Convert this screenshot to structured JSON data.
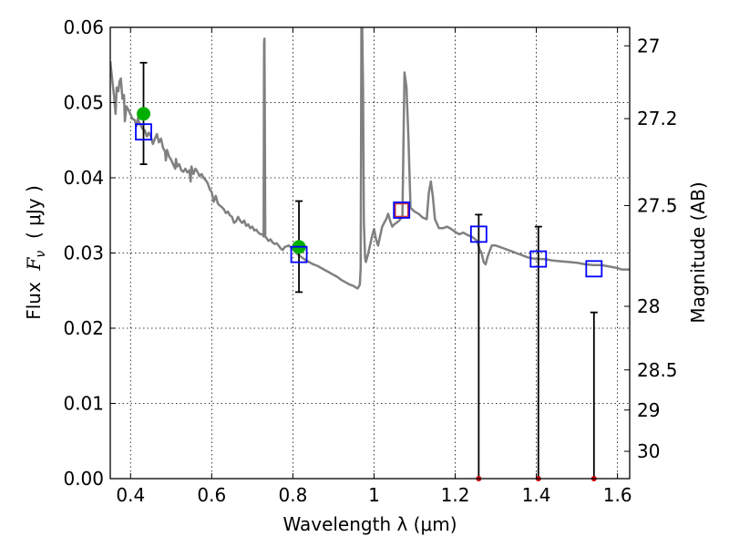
{
  "chart_data": {
    "type": "scatter",
    "xlabel": "Wavelength  λ (μm)",
    "ylabel": "Flux  F_ν  ( μJy )",
    "ylabel_parts": {
      "prefix": "Flux  ",
      "symbol": "F",
      "subscript": "ν",
      "suffix": "  ( μJy )"
    },
    "y2label": "Magnitude (AB)",
    "xlim": [
      0.35,
      1.63
    ],
    "ylim": [
      0.0,
      0.06
    ],
    "xticks": [
      0.4,
      0.6,
      0.8,
      1.0,
      1.2,
      1.4,
      1.6
    ],
    "xtick_labels": [
      "0.4",
      "0.6",
      "0.8",
      "1",
      "1.2",
      "1.4",
      "1.6"
    ],
    "yticks": [
      0.0,
      0.01,
      0.02,
      0.03,
      0.04,
      0.05,
      0.06
    ],
    "ytick_labels": [
      "0.00",
      "0.01",
      "0.02",
      "0.03",
      "0.04",
      "0.05",
      "0.06"
    ],
    "y2ticks": [
      27,
      27.2,
      27.5,
      28,
      28.5,
      29,
      30
    ],
    "y2tick_labels": [
      "27",
      "27.2",
      "27.5",
      "28",
      "28.5",
      "29",
      "30"
    ],
    "grid": true,
    "colors": {
      "sed": "#808080",
      "observed": "#00b000",
      "model": "#0000ff",
      "model_alt": "#cc3333",
      "upper_limit": "#cc0000",
      "errorbar": "#000000"
    },
    "series": [
      {
        "type": "line",
        "points": [
          [
            0.35,
            0.0555
          ],
          [
            0.355,
            0.053
          ],
          [
            0.36,
            0.0505
          ],
          [
            0.363,
            0.0485
          ],
          [
            0.366,
            0.052
          ],
          [
            0.37,
            0.0515
          ],
          [
            0.373,
            0.0528
          ],
          [
            0.376,
            0.0532
          ],
          [
            0.38,
            0.0505
          ],
          [
            0.384,
            0.051
          ],
          [
            0.386,
            0.0475
          ],
          [
            0.39,
            0.0495
          ],
          [
            0.395,
            0.049
          ],
          [
            0.4,
            0.0484
          ],
          [
            0.405,
            0.0478
          ],
          [
            0.41,
            0.0477
          ],
          [
            0.415,
            0.0469
          ],
          [
            0.418,
            0.0479
          ],
          [
            0.42,
            0.0475
          ],
          [
            0.425,
            0.047
          ],
          [
            0.43,
            0.0465
          ],
          [
            0.435,
            0.0463
          ],
          [
            0.44,
            0.0455
          ],
          [
            0.445,
            0.046
          ],
          [
            0.45,
            0.0455
          ],
          [
            0.455,
            0.0445
          ],
          [
            0.46,
            0.0452
          ],
          [
            0.465,
            0.0458
          ],
          [
            0.47,
            0.0447
          ],
          [
            0.475,
            0.0452
          ],
          [
            0.48,
            0.044
          ],
          [
            0.485,
            0.0435
          ],
          [
            0.487,
            0.0423
          ],
          [
            0.49,
            0.0437
          ],
          [
            0.495,
            0.0428
          ],
          [
            0.5,
            0.0424
          ],
          [
            0.505,
            0.0418
          ],
          [
            0.51,
            0.0412
          ],
          [
            0.512,
            0.0425
          ],
          [
            0.515,
            0.0415
          ],
          [
            0.52,
            0.0418
          ],
          [
            0.525,
            0.041
          ],
          [
            0.53,
            0.0408
          ],
          [
            0.535,
            0.0412
          ],
          [
            0.54,
            0.0407
          ],
          [
            0.545,
            0.041
          ],
          [
            0.548,
            0.0395
          ],
          [
            0.55,
            0.0415
          ],
          [
            0.555,
            0.0405
          ],
          [
            0.56,
            0.0412
          ],
          [
            0.565,
            0.0408
          ],
          [
            0.57,
            0.0402
          ],
          [
            0.575,
            0.0405
          ],
          [
            0.58,
            0.04
          ],
          [
            0.585,
            0.0397
          ],
          [
            0.59,
            0.0393
          ],
          [
            0.595,
            0.0385
          ],
          [
            0.6,
            0.0381
          ],
          [
            0.605,
            0.0368
          ],
          [
            0.61,
            0.0376
          ],
          [
            0.615,
            0.0366
          ],
          [
            0.62,
            0.0363
          ],
          [
            0.625,
            0.0361
          ],
          [
            0.63,
            0.0358
          ],
          [
            0.635,
            0.0353
          ],
          [
            0.64,
            0.0355
          ],
          [
            0.645,
            0.035
          ],
          [
            0.65,
            0.0348
          ],
          [
            0.655,
            0.034
          ],
          [
            0.66,
            0.0342
          ],
          [
            0.665,
            0.0348
          ],
          [
            0.67,
            0.0343
          ],
          [
            0.675,
            0.034
          ],
          [
            0.68,
            0.0343
          ],
          [
            0.685,
            0.0336
          ],
          [
            0.69,
            0.0338
          ],
          [
            0.695,
            0.0333
          ],
          [
            0.7,
            0.0335
          ],
          [
            0.705,
            0.033
          ],
          [
            0.71,
            0.0331
          ],
          [
            0.715,
            0.0327
          ],
          [
            0.72,
            0.0325
          ],
          [
            0.725,
            0.0325
          ],
          [
            0.728,
            0.0322
          ],
          [
            0.729,
            0.058
          ],
          [
            0.73,
            0.0585
          ],
          [
            0.731,
            0.045
          ],
          [
            0.732,
            0.0322
          ],
          [
            0.735,
            0.032
          ],
          [
            0.74,
            0.0316
          ],
          [
            0.745,
            0.0318
          ],
          [
            0.75,
            0.0314
          ],
          [
            0.755,
            0.0312
          ],
          [
            0.76,
            0.0313
          ],
          [
            0.765,
            0.031
          ],
          [
            0.77,
            0.0306
          ],
          [
            0.775,
            0.0304
          ],
          [
            0.78,
            0.0308
          ],
          [
            0.79,
            0.031
          ],
          [
            0.8,
            0.0305
          ],
          [
            0.81,
            0.0299
          ],
          [
            0.82,
            0.0295
          ],
          [
            0.83,
            0.0291
          ],
          [
            0.84,
            0.0288
          ],
          [
            0.85,
            0.0285
          ],
          [
            0.86,
            0.0283
          ],
          [
            0.87,
            0.028
          ],
          [
            0.88,
            0.0277
          ],
          [
            0.89,
            0.0274
          ],
          [
            0.9,
            0.0271
          ],
          [
            0.91,
            0.0268
          ],
          [
            0.92,
            0.0264
          ],
          [
            0.93,
            0.0261
          ],
          [
            0.94,
            0.0258
          ],
          [
            0.95,
            0.0256
          ],
          [
            0.955,
            0.0254
          ],
          [
            0.96,
            0.0253
          ],
          [
            0.965,
            0.0258
          ],
          [
            0.967,
            0.028
          ],
          [
            0.969,
            0.06
          ],
          [
            0.971,
            0.06
          ],
          [
            0.973,
            0.052
          ],
          [
            0.975,
            0.034
          ],
          [
            0.978,
            0.0293
          ],
          [
            0.98,
            0.0288
          ],
          [
            0.985,
            0.0298
          ],
          [
            0.99,
            0.031
          ],
          [
            0.995,
            0.0322
          ],
          [
            1.0,
            0.0332
          ],
          [
            1.005,
            0.0318
          ],
          [
            1.01,
            0.031
          ],
          [
            1.02,
            0.0335
          ],
          [
            1.03,
            0.0345
          ],
          [
            1.035,
            0.0352
          ],
          [
            1.04,
            0.0342
          ],
          [
            1.045,
            0.0335
          ],
          [
            1.05,
            0.0338
          ],
          [
            1.06,
            0.0342
          ],
          [
            1.07,
            0.0348
          ],
          [
            1.075,
            0.054
          ],
          [
            1.08,
            0.052
          ],
          [
            1.085,
            0.045
          ],
          [
            1.09,
            0.036
          ],
          [
            1.1,
            0.0355
          ],
          [
            1.11,
            0.0352
          ],
          [
            1.12,
            0.0347
          ],
          [
            1.13,
            0.0345
          ],
          [
            1.135,
            0.038
          ],
          [
            1.14,
            0.0395
          ],
          [
            1.145,
            0.0375
          ],
          [
            1.15,
            0.0345
          ],
          [
            1.16,
            0.0333
          ],
          [
            1.17,
            0.0333
          ],
          [
            1.18,
            0.0335
          ],
          [
            1.19,
            0.0332
          ],
          [
            1.2,
            0.0328
          ],
          [
            1.21,
            0.0325
          ],
          [
            1.22,
            0.0327
          ],
          [
            1.23,
            0.0324
          ],
          [
            1.24,
            0.0322
          ],
          [
            1.25,
            0.0318
          ],
          [
            1.255,
            0.0315
          ],
          [
            1.26,
            0.0305
          ],
          [
            1.265,
            0.03
          ],
          [
            1.27,
            0.0288
          ],
          [
            1.275,
            0.0285
          ],
          [
            1.28,
            0.0295
          ],
          [
            1.29,
            0.031
          ],
          [
            1.3,
            0.031
          ],
          [
            1.31,
            0.0308
          ],
          [
            1.32,
            0.0306
          ],
          [
            1.33,
            0.0304
          ],
          [
            1.34,
            0.0302
          ],
          [
            1.35,
            0.03
          ],
          [
            1.36,
            0.0298
          ],
          [
            1.37,
            0.0296
          ],
          [
            1.38,
            0.0294
          ],
          [
            1.39,
            0.0293
          ],
          [
            1.4,
            0.0292
          ],
          [
            1.42,
            0.0292
          ],
          [
            1.44,
            0.029
          ],
          [
            1.46,
            0.0289
          ],
          [
            1.48,
            0.0288
          ],
          [
            1.5,
            0.0287
          ],
          [
            1.52,
            0.0285
          ],
          [
            1.54,
            0.0284
          ],
          [
            1.56,
            0.0284
          ],
          [
            1.58,
            0.0282
          ],
          [
            1.6,
            0.028
          ],
          [
            1.61,
            0.0278
          ],
          [
            1.63,
            0.0278
          ]
        ]
      },
      {
        "type": "scatter",
        "points": [
          [
            0.432,
            0.0461
          ],
          [
            0.815,
            0.0298
          ],
          [
            1.258,
            0.0325
          ],
          [
            1.405,
            0.0292
          ],
          [
            1.542,
            0.0279
          ]
        ]
      },
      {
        "type": "scatter",
        "points": [
          [
            1.068,
            0.0357
          ]
        ]
      },
      {
        "type": "scatter",
        "points": [
          [
            0.432,
            0.0485
          ],
          [
            0.815,
            0.0308
          ]
        ]
      },
      {
        "type": "errorbar",
        "bars": [
          [
            0.432,
            0.0418,
            0.0553
          ],
          [
            0.815,
            0.0248,
            0.0369
          ],
          [
            1.258,
            0.0,
            0.0351
          ],
          [
            1.405,
            0.0,
            0.0335
          ],
          [
            1.542,
            0.0,
            0.0221
          ]
        ]
      },
      {
        "type": "scatter",
        "points": [
          [
            1.258,
            0.0
          ],
          [
            1.405,
            0.0
          ],
          [
            1.542,
            0.0
          ]
        ]
      }
    ]
  }
}
